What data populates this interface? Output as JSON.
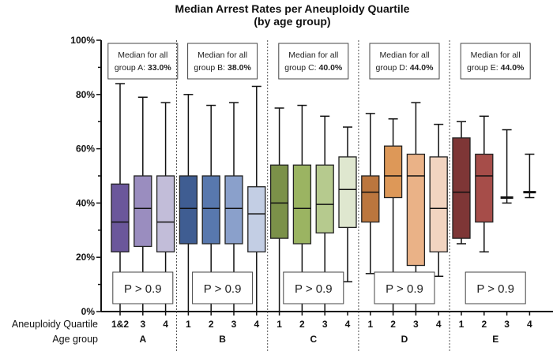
{
  "chart_data": {
    "type": "box",
    "title": "Median Arrest Rates per Aneuploidy Quartile",
    "subtitle": "(by age group)",
    "ylim": [
      0,
      100
    ],
    "yticks": [
      "0%",
      "20%",
      "40%",
      "60%",
      "80%",
      "100%"
    ],
    "row_labels": {
      "quartile": "Aneuploidy Quartile",
      "age": "Age group"
    },
    "grid": false,
    "groups": [
      {
        "name": "A",
        "note_prefix": "Median for all",
        "note_label": "group A:",
        "note_value": "33.0%",
        "p_value": "P > 0.9",
        "boxes": [
          {
            "label": "1&2",
            "min": 0,
            "q1": 22,
            "median": 33,
            "q3": 47,
            "max": 84,
            "color": "#6b579b"
          },
          {
            "label": "3",
            "min": 0,
            "q1": 24,
            "median": 38,
            "q3": 50,
            "max": 79,
            "color": "#9a8dbf"
          },
          {
            "label": "4",
            "min": 0,
            "q1": 22,
            "median": 33,
            "q3": 50,
            "max": 77,
            "color": "#c2bdd9"
          }
        ]
      },
      {
        "name": "B",
        "note_prefix": "Median for all",
        "note_label": "group B:",
        "note_value": "38.0%",
        "p_value": "P > 0.9",
        "boxes": [
          {
            "label": "1",
            "min": 0,
            "q1": 25,
            "median": 38,
            "q3": 50,
            "max": 80,
            "color": "#3f5d92"
          },
          {
            "label": "2",
            "min": 0,
            "q1": 25,
            "median": 38,
            "q3": 50,
            "max": 76,
            "color": "#5878ae"
          },
          {
            "label": "3",
            "min": 0,
            "q1": 25,
            "median": 38,
            "q3": 50,
            "max": 77,
            "color": "#8aa0cb"
          },
          {
            "label": "4",
            "min": 0,
            "q1": 22,
            "median": 36,
            "q3": 46,
            "max": 83,
            "color": "#c3cee4"
          }
        ]
      },
      {
        "name": "C",
        "note_prefix": "Median for all",
        "note_label": "group C:",
        "note_value": "40.0%",
        "p_value": "P > 0.9",
        "boxes": [
          {
            "label": "1",
            "min": 0,
            "q1": 27,
            "median": 40,
            "q3": 54,
            "max": 75,
            "color": "#7b9149"
          },
          {
            "label": "2",
            "min": 0,
            "q1": 25,
            "median": 38,
            "q3": 54,
            "max": 76,
            "color": "#9bb462"
          },
          {
            "label": "3",
            "min": 0,
            "q1": 29,
            "median": 39.5,
            "q3": 54,
            "max": 72,
            "color": "#b6ca8e"
          },
          {
            "label": "4",
            "min": 11,
            "q1": 31,
            "median": 45,
            "q3": 57,
            "max": 68,
            "color": "#dfe7cf"
          }
        ]
      },
      {
        "name": "D",
        "note_prefix": "Median for all",
        "note_label": "group D:",
        "note_value": "44.0%",
        "p_value": "P > 0.9",
        "boxes": [
          {
            "label": "1",
            "min": 14,
            "q1": 33,
            "median": 44,
            "q3": 50,
            "max": 73,
            "color": "#bb763e"
          },
          {
            "label": "2",
            "min": 0,
            "q1": 42,
            "median": 50,
            "q3": 61,
            "max": 71,
            "color": "#dd9858"
          },
          {
            "label": "3",
            "min": 0,
            "q1": 17,
            "median": 50,
            "q3": 58,
            "max": 77,
            "color": "#eab287"
          },
          {
            "label": "4",
            "min": 13,
            "q1": 22,
            "median": 38,
            "q3": 57,
            "max": 69,
            "color": "#f2d4c0"
          }
        ]
      },
      {
        "name": "E",
        "note_prefix": "Median for all",
        "note_label": "group E:",
        "note_value": "44.0%",
        "p_value": "P > 0.9",
        "boxes": [
          {
            "label": "1",
            "min": 25,
            "q1": 27,
            "median": 44,
            "q3": 64,
            "max": 70,
            "color": "#7e3636"
          },
          {
            "label": "2",
            "min": 22,
            "q1": 33,
            "median": 50,
            "q3": 58,
            "max": 72,
            "color": "#a64d49"
          },
          {
            "label": "3",
            "min": 40,
            "q1": 42,
            "median": 42,
            "q3": 42,
            "max": 67,
            "color": "#c98a86"
          },
          {
            "label": "4",
            "min": 42,
            "q1": 44,
            "median": 44,
            "q3": 44,
            "max": 58,
            "color": "#dfb3b0"
          }
        ]
      }
    ]
  }
}
